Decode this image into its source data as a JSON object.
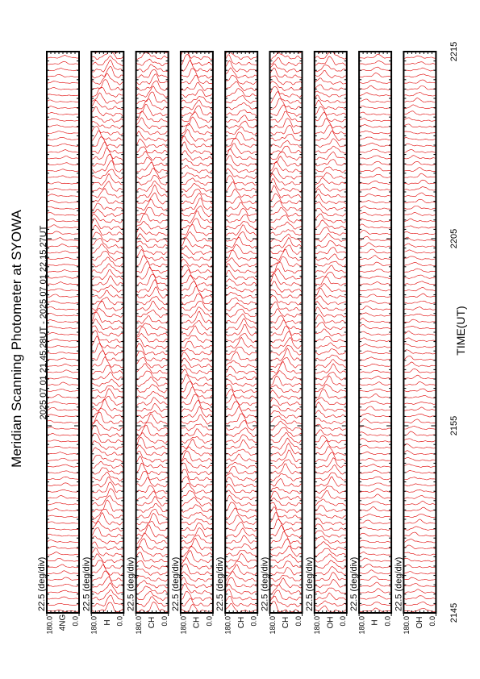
{
  "chart_data": {
    "type": "stack",
    "title": "Meridian Scanning Photometer at SYOWA",
    "subtitle": "2025 07 01 21.45.28UT - 2025 07 01 22.15.27UT",
    "xlabel": "TIME(UT)",
    "xlim": [
      1305,
      1335
    ],
    "xticks": [
      {
        "value": 1305,
        "label": "2145"
      },
      {
        "value": 1315,
        "label": "2155"
      },
      {
        "value": 1325,
        "label": "2205"
      },
      {
        "value": 1335,
        "label": "2215"
      }
    ],
    "color": "#e00000",
    "panels": [
      {
        "scale": "22.5 (deg/div)",
        "channel": "4NG",
        "ylim": [
          0,
          180
        ],
        "yticks": [
          {
            "value": 180,
            "label": "180.0"
          },
          {
            "value": 0,
            "label": "0.0"
          }
        ]
      },
      {
        "scale": "22.5 (deg/div)",
        "channel": "H",
        "ylim": [
          0,
          180
        ],
        "yticks": [
          {
            "value": 180,
            "label": "180.0"
          },
          {
            "value": 0,
            "label": "0.0"
          }
        ]
      },
      {
        "scale": "22.5 (deg/div)",
        "channel": "CH",
        "ylim": [
          0,
          180
        ],
        "yticks": [
          {
            "value": 180,
            "label": "180.0"
          },
          {
            "value": 0,
            "label": "0.0"
          }
        ]
      },
      {
        "scale": "22.5 (deg/div)",
        "channel": "CH",
        "ylim": [
          0,
          180
        ],
        "yticks": [
          {
            "value": 180,
            "label": "180.0"
          },
          {
            "value": 0,
            "label": "0.0"
          }
        ]
      },
      {
        "scale": "22.5 (deg/div)",
        "channel": "CH",
        "ylim": [
          0,
          180
        ],
        "yticks": [
          {
            "value": 180,
            "label": "180.0"
          },
          {
            "value": 0,
            "label": "0.0"
          }
        ]
      },
      {
        "scale": "22.5 (deg/div)",
        "channel": "CH",
        "ylim": [
          0,
          180
        ],
        "yticks": [
          {
            "value": 180,
            "label": "180.0"
          },
          {
            "value": 0,
            "label": "0.0"
          }
        ]
      },
      {
        "scale": "22.5 (deg/div)",
        "channel": "OH",
        "ylim": [
          0,
          180
        ],
        "yticks": [
          {
            "value": 180,
            "label": "180.0"
          },
          {
            "value": 0,
            "label": "0.0"
          }
        ]
      },
      {
        "scale": "22.5 (deg/div)",
        "channel": "H",
        "ylim": [
          0,
          180
        ],
        "yticks": [
          {
            "value": 180,
            "label": "180.0"
          },
          {
            "value": 0,
            "label": "0.0"
          }
        ]
      },
      {
        "scale": "22.5 (deg/div)",
        "channel": "OH",
        "ylim": [
          0,
          180
        ],
        "yticks": [
          {
            "value": 180,
            "label": "180.0"
          },
          {
            "value": 0,
            "label": "0.0"
          }
        ]
      }
    ]
  }
}
